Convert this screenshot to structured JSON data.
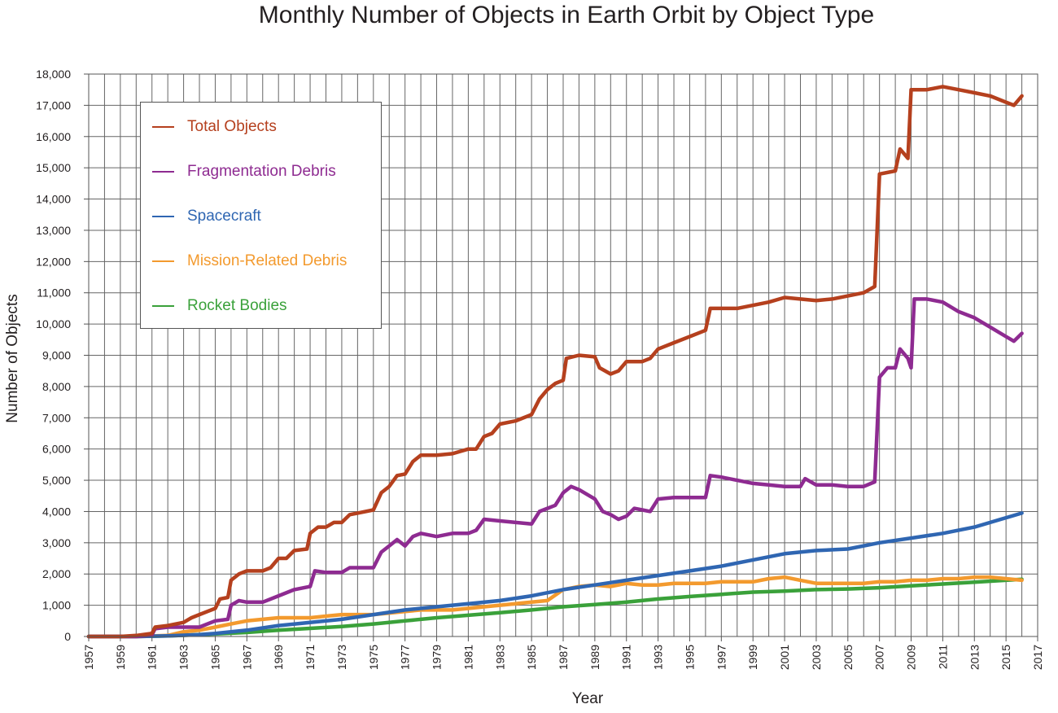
{
  "chart_data": {
    "type": "line",
    "title": "Monthly Number of Objects in Earth Orbit by Object Type",
    "xlabel": "Year",
    "ylabel": "Number of Objects",
    "xlim": [
      1957,
      2017
    ],
    "ylim": [
      0,
      18000
    ],
    "x_ticks": [
      "1957",
      "1959",
      "1961",
      "1963",
      "1965",
      "1967",
      "1969",
      "1971",
      "1973",
      "1975",
      "1977",
      "1979",
      "1981",
      "1983",
      "1985",
      "1987",
      "1989",
      "1991",
      "1993",
      "1995",
      "1997",
      "1999",
      "2001",
      "2003",
      "2005",
      "2007",
      "2009",
      "2011",
      "2013",
      "2015",
      "2017"
    ],
    "y_ticks": [
      "0",
      "1,000",
      "2,000",
      "3,000",
      "4,000",
      "5,000",
      "6,000",
      "7,000",
      "8,000",
      "9,000",
      "10,000",
      "11,000",
      "12,000",
      "13,000",
      "14,000",
      "15,000",
      "16,000",
      "17,000",
      "18,000"
    ],
    "grid": true,
    "legend_position": "top-left",
    "series": [
      {
        "name": "Total Objects",
        "color": "#b5401e",
        "points": [
          [
            1957,
            0
          ],
          [
            1958,
            0
          ],
          [
            1959,
            0
          ],
          [
            1960,
            30
          ],
          [
            1961,
            100
          ],
          [
            1961.2,
            300
          ],
          [
            1962,
            350
          ],
          [
            1963,
            450
          ],
          [
            1963.5,
            600
          ],
          [
            1964,
            700
          ],
          [
            1965,
            900
          ],
          [
            1965.3,
            1200
          ],
          [
            1965.8,
            1250
          ],
          [
            1966,
            1800
          ],
          [
            1966.5,
            2000
          ],
          [
            1967,
            2100
          ],
          [
            1968,
            2100
          ],
          [
            1968.5,
            2200
          ],
          [
            1969,
            2500
          ],
          [
            1969.5,
            2500
          ],
          [
            1970,
            2750
          ],
          [
            1970.8,
            2800
          ],
          [
            1971,
            3300
          ],
          [
            1971.5,
            3500
          ],
          [
            1972,
            3500
          ],
          [
            1972.5,
            3650
          ],
          [
            1973,
            3650
          ],
          [
            1973.5,
            3900
          ],
          [
            1974,
            3950
          ],
          [
            1975,
            4050
          ],
          [
            1975.5,
            4600
          ],
          [
            1976,
            4800
          ],
          [
            1976.5,
            5150
          ],
          [
            1977,
            5200
          ],
          [
            1977.5,
            5600
          ],
          [
            1978,
            5800
          ],
          [
            1979,
            5800
          ],
          [
            1980,
            5850
          ],
          [
            1981,
            6000
          ],
          [
            1981.5,
            6000
          ],
          [
            1982,
            6400
          ],
          [
            1982.5,
            6500
          ],
          [
            1983,
            6800
          ],
          [
            1984,
            6900
          ],
          [
            1985,
            7100
          ],
          [
            1985.5,
            7600
          ],
          [
            1986,
            7900
          ],
          [
            1986.5,
            8100
          ],
          [
            1987,
            8200
          ],
          [
            1987.2,
            8900
          ],
          [
            1988,
            9000
          ],
          [
            1989,
            8950
          ],
          [
            1989.3,
            8600
          ],
          [
            1990,
            8400
          ],
          [
            1990.5,
            8500
          ],
          [
            1991,
            8800
          ],
          [
            1992,
            8800
          ],
          [
            1992.5,
            8900
          ],
          [
            1993,
            9200
          ],
          [
            1994,
            9400
          ],
          [
            1995,
            9600
          ],
          [
            1996,
            9800
          ],
          [
            1996.3,
            10500
          ],
          [
            1997,
            10500
          ],
          [
            1998,
            10500
          ],
          [
            1999,
            10600
          ],
          [
            2000,
            10700
          ],
          [
            2001,
            10850
          ],
          [
            2002,
            10800
          ],
          [
            2003,
            10750
          ],
          [
            2004,
            10800
          ],
          [
            2005,
            10900
          ],
          [
            2006,
            11000
          ],
          [
            2006.7,
            11200
          ],
          [
            2007,
            14800
          ],
          [
            2008,
            14900
          ],
          [
            2008.3,
            15600
          ],
          [
            2008.8,
            15300
          ],
          [
            2009,
            17500
          ],
          [
            2010,
            17500
          ],
          [
            2011,
            17600
          ],
          [
            2012,
            17500
          ],
          [
            2013,
            17400
          ],
          [
            2014,
            17300
          ],
          [
            2015,
            17100
          ],
          [
            2015.5,
            17000
          ],
          [
            2016,
            17300
          ]
        ]
      },
      {
        "name": "Fragmentation Debris",
        "color": "#8e2b91",
        "points": [
          [
            1957,
            0
          ],
          [
            1960,
            0
          ],
          [
            1961,
            50
          ],
          [
            1961.2,
            250
          ],
          [
            1962,
            300
          ],
          [
            1963,
            300
          ],
          [
            1964,
            300
          ],
          [
            1965,
            500
          ],
          [
            1965.8,
            550
          ],
          [
            1966,
            1000
          ],
          [
            1966.5,
            1150
          ],
          [
            1967,
            1100
          ],
          [
            1968,
            1100
          ],
          [
            1969,
            1300
          ],
          [
            1970,
            1500
          ],
          [
            1971,
            1600
          ],
          [
            1971.3,
            2100
          ],
          [
            1972,
            2050
          ],
          [
            1973,
            2050
          ],
          [
            1973.5,
            2200
          ],
          [
            1974,
            2200
          ],
          [
            1975,
            2200
          ],
          [
            1975.5,
            2700
          ],
          [
            1976,
            2900
          ],
          [
            1976.5,
            3100
          ],
          [
            1977,
            2900
          ],
          [
            1977.5,
            3200
          ],
          [
            1978,
            3300
          ],
          [
            1979,
            3200
          ],
          [
            1980,
            3300
          ],
          [
            1981,
            3300
          ],
          [
            1981.5,
            3400
          ],
          [
            1982,
            3750
          ],
          [
            1983,
            3700
          ],
          [
            1984,
            3650
          ],
          [
            1985,
            3600
          ],
          [
            1985.5,
            4000
          ],
          [
            1986,
            4100
          ],
          [
            1986.5,
            4200
          ],
          [
            1987,
            4600
          ],
          [
            1987.5,
            4800
          ],
          [
            1988,
            4700
          ],
          [
            1989,
            4400
          ],
          [
            1989.5,
            4000
          ],
          [
            1990,
            3900
          ],
          [
            1990.5,
            3750
          ],
          [
            1991,
            3850
          ],
          [
            1991.5,
            4100
          ],
          [
            1992,
            4050
          ],
          [
            1992.5,
            4000
          ],
          [
            1993,
            4400
          ],
          [
            1994,
            4450
          ],
          [
            1995,
            4450
          ],
          [
            1996,
            4450
          ],
          [
            1996.3,
            5150
          ],
          [
            1997,
            5100
          ],
          [
            1998,
            5000
          ],
          [
            1999,
            4900
          ],
          [
            2000,
            4850
          ],
          [
            2001,
            4800
          ],
          [
            2002,
            4800
          ],
          [
            2002.3,
            5050
          ],
          [
            2003,
            4850
          ],
          [
            2004,
            4850
          ],
          [
            2005,
            4800
          ],
          [
            2006,
            4800
          ],
          [
            2006.7,
            4950
          ],
          [
            2007,
            8300
          ],
          [
            2007.5,
            8600
          ],
          [
            2008,
            8600
          ],
          [
            2008.3,
            9200
          ],
          [
            2008.8,
            8900
          ],
          [
            2009,
            8600
          ],
          [
            2009.2,
            10800
          ],
          [
            2010,
            10800
          ],
          [
            2011,
            10700
          ],
          [
            2012,
            10400
          ],
          [
            2013,
            10200
          ],
          [
            2014,
            9900
          ],
          [
            2015,
            9600
          ],
          [
            2015.5,
            9450
          ],
          [
            2016,
            9700
          ]
        ]
      },
      {
        "name": "Spacecraft",
        "color": "#2f66b2",
        "points": [
          [
            1957,
            0
          ],
          [
            1960,
            0
          ],
          [
            1962,
            20
          ],
          [
            1964,
            60
          ],
          [
            1965,
            100
          ],
          [
            1967,
            200
          ],
          [
            1969,
            350
          ],
          [
            1971,
            450
          ],
          [
            1973,
            550
          ],
          [
            1975,
            700
          ],
          [
            1977,
            850
          ],
          [
            1979,
            950
          ],
          [
            1981,
            1050
          ],
          [
            1983,
            1150
          ],
          [
            1985,
            1300
          ],
          [
            1987,
            1500
          ],
          [
            1989,
            1650
          ],
          [
            1991,
            1800
          ],
          [
            1993,
            1950
          ],
          [
            1995,
            2100
          ],
          [
            1997,
            2250
          ],
          [
            1999,
            2450
          ],
          [
            2001,
            2650
          ],
          [
            2003,
            2750
          ],
          [
            2005,
            2800
          ],
          [
            2007,
            3000
          ],
          [
            2009,
            3150
          ],
          [
            2011,
            3300
          ],
          [
            2013,
            3500
          ],
          [
            2015,
            3800
          ],
          [
            2016,
            3950
          ]
        ]
      },
      {
        "name": "Mission-Related Debris",
        "color": "#f39a2e",
        "points": [
          [
            1957,
            0
          ],
          [
            1960,
            0
          ],
          [
            1962,
            30
          ],
          [
            1963,
            150
          ],
          [
            1964,
            200
          ],
          [
            1965,
            300
          ],
          [
            1966,
            400
          ],
          [
            1967,
            500
          ],
          [
            1968,
            550
          ],
          [
            1969,
            600
          ],
          [
            1970,
            600
          ],
          [
            1971,
            600
          ],
          [
            1972,
            650
          ],
          [
            1973,
            700
          ],
          [
            1975,
            700
          ],
          [
            1977,
            800
          ],
          [
            1978,
            850
          ],
          [
            1979,
            850
          ],
          [
            1980,
            850
          ],
          [
            1981,
            900
          ],
          [
            1982,
            950
          ],
          [
            1983,
            1000
          ],
          [
            1984,
            1050
          ],
          [
            1985,
            1100
          ],
          [
            1986,
            1150
          ],
          [
            1987,
            1500
          ],
          [
            1988,
            1600
          ],
          [
            1989,
            1650
          ],
          [
            1990,
            1600
          ],
          [
            1991,
            1700
          ],
          [
            1992,
            1650
          ],
          [
            1993,
            1650
          ],
          [
            1994,
            1700
          ],
          [
            1995,
            1700
          ],
          [
            1996,
            1700
          ],
          [
            1997,
            1750
          ],
          [
            1998,
            1750
          ],
          [
            1999,
            1750
          ],
          [
            2000,
            1850
          ],
          [
            2001,
            1900
          ],
          [
            2002,
            1800
          ],
          [
            2003,
            1700
          ],
          [
            2004,
            1700
          ],
          [
            2005,
            1700
          ],
          [
            2006,
            1700
          ],
          [
            2007,
            1750
          ],
          [
            2008,
            1750
          ],
          [
            2009,
            1800
          ],
          [
            2010,
            1800
          ],
          [
            2011,
            1850
          ],
          [
            2012,
            1850
          ],
          [
            2013,
            1900
          ],
          [
            2014,
            1900
          ],
          [
            2015,
            1850
          ],
          [
            2016,
            1800
          ]
        ]
      },
      {
        "name": "Rocket Bodies",
        "color": "#3aa13a",
        "points": [
          [
            1957,
            0
          ],
          [
            1960,
            0
          ],
          [
            1962,
            20
          ],
          [
            1964,
            60
          ],
          [
            1965,
            80
          ],
          [
            1967,
            130
          ],
          [
            1969,
            200
          ],
          [
            1971,
            260
          ],
          [
            1973,
            320
          ],
          [
            1975,
            400
          ],
          [
            1977,
            500
          ],
          [
            1979,
            600
          ],
          [
            1981,
            680
          ],
          [
            1983,
            760
          ],
          [
            1985,
            850
          ],
          [
            1987,
            950
          ],
          [
            1989,
            1020
          ],
          [
            1991,
            1100
          ],
          [
            1993,
            1200
          ],
          [
            1995,
            1280
          ],
          [
            1997,
            1350
          ],
          [
            1999,
            1420
          ],
          [
            2001,
            1450
          ],
          [
            2003,
            1500
          ],
          [
            2005,
            1520
          ],
          [
            2007,
            1560
          ],
          [
            2009,
            1620
          ],
          [
            2011,
            1680
          ],
          [
            2013,
            1740
          ],
          [
            2015,
            1800
          ],
          [
            2016,
            1830
          ]
        ]
      }
    ]
  }
}
